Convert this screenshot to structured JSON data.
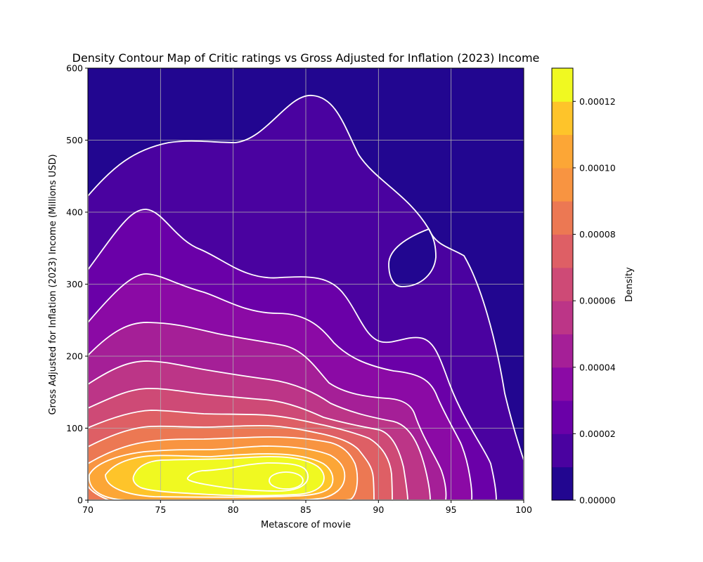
{
  "chart_data": {
    "type": "contour",
    "title": "Density Contour Map of Critic ratings vs Gross Adjusted for Inflation (2023) Income",
    "xlabel": "Metascore of movie",
    "ylabel": "Gross Adjusted for Inflation (2023) Income (Millions USD)",
    "xlim": [
      70,
      100
    ],
    "ylim": [
      0,
      600
    ],
    "x_ticks": [
      "70",
      "75",
      "80",
      "85",
      "90",
      "95",
      "100"
    ],
    "y_ticks": [
      "0",
      "100",
      "200",
      "300",
      "400",
      "500",
      "600"
    ],
    "grid": true,
    "colormap": "plasma",
    "colorbar": {
      "label": "Density",
      "range": [
        0,
        0.00013
      ],
      "ticks": [
        "0.00000",
        "0.00002",
        "0.00004",
        "0.00006",
        "0.00008",
        "0.00010",
        "0.00012"
      ],
      "colors": [
        "#220690",
        "#4a02a0",
        "#6a00a8",
        "#8b0aa5",
        "#a51f97",
        "#bc3587",
        "#ce4a76",
        "#de5f65",
        "#ec7853",
        "#f89441",
        "#fca636",
        "#fec42a",
        "#f0f921"
      ]
    },
    "line_color": "#ffffff",
    "peak": {
      "x": 83.5,
      "y": 28
    }
  }
}
